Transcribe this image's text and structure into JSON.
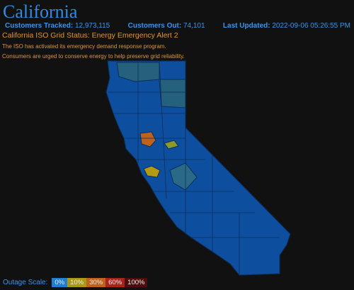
{
  "header": {
    "title": "California"
  },
  "stats": [
    {
      "label": "Customers Tracked:",
      "value": "12,973,115"
    },
    {
      "label": "Customers Out:",
      "value": "74,101"
    },
    {
      "label": "Last Updated:",
      "value": "2022-09-06 05:26:55 PM"
    }
  ],
  "alert": {
    "status": "California ISO Grid Status: Energy Emergency Alert 2",
    "messages": [
      "The ISO has activated its emergency demand response program.",
      "Consumers are urged to conserve energy to help preserve grid reliability."
    ]
  },
  "legend": {
    "title": "Outage Scale:",
    "items": [
      {
        "label": "0%",
        "color": "#1e7fd6"
      },
      {
        "label": "10%",
        "color": "#a99a12"
      },
      {
        "label": "30%",
        "color": "#c0621c"
      },
      {
        "label": "60%",
        "color": "#a8231b"
      },
      {
        "label": "100%",
        "color": "#4e0d0d"
      }
    ]
  }
}
